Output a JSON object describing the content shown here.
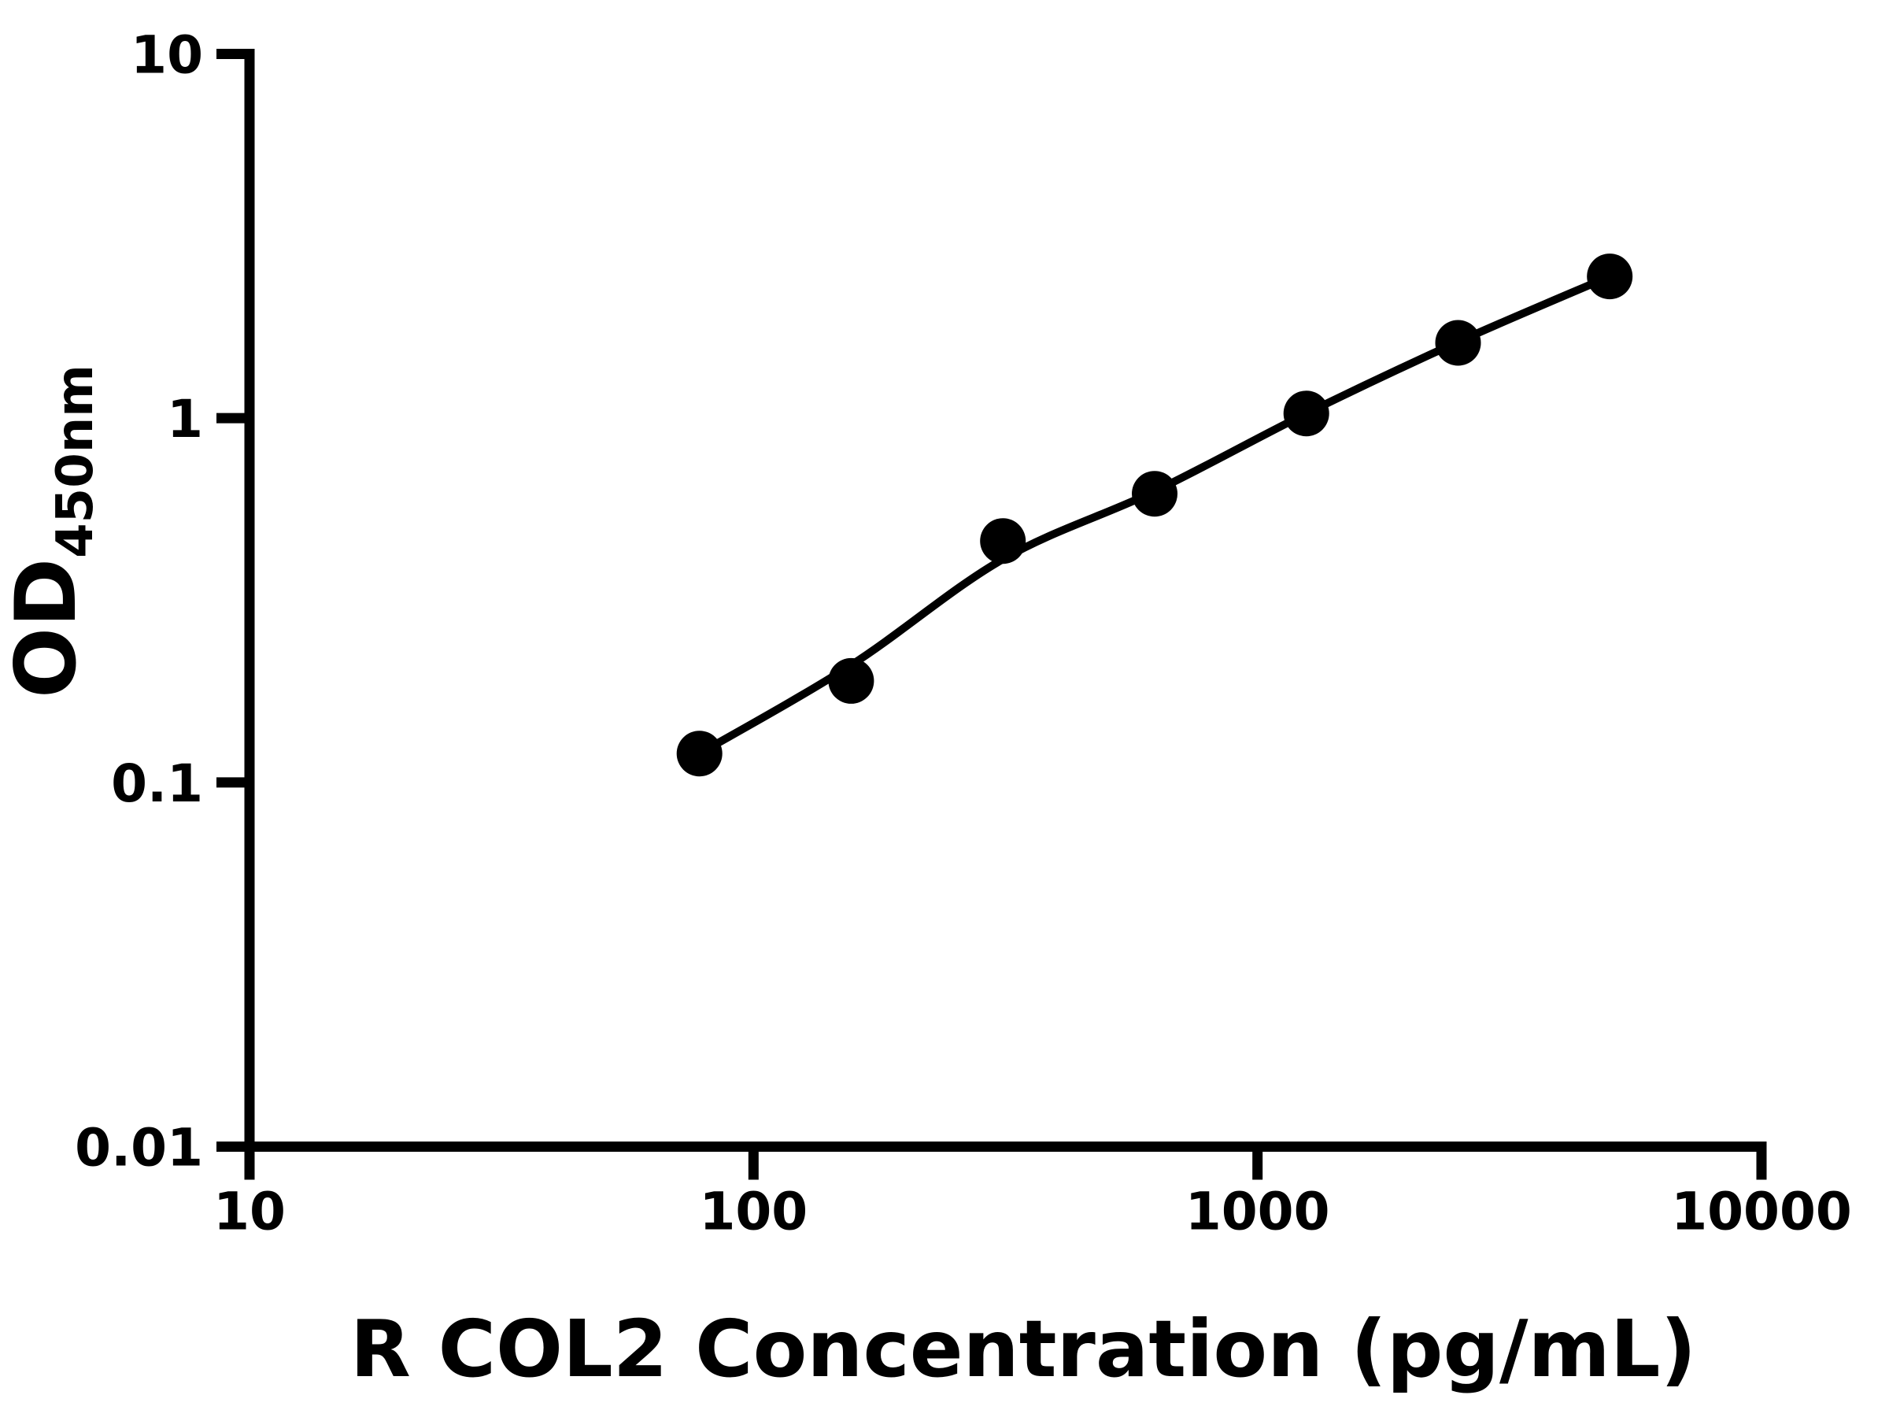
{
  "figure": {
    "background_color": "#ffffff",
    "foreground_color": "#000000"
  },
  "chart_data": {
    "type": "scatter",
    "title": "",
    "xlabel": "R COL2 Concentration (pg/mL)",
    "ylabel": "OD450nm",
    "ylabel_main": "OD",
    "ylabel_sub": "450nm",
    "x_scale": "log10",
    "y_scale": "log10",
    "xlim": [
      10,
      10000
    ],
    "ylim": [
      0.01,
      10
    ],
    "grid": false,
    "legend": false,
    "x_ticks": {
      "values": [
        10,
        100,
        1000,
        10000
      ],
      "labels": [
        "10",
        "100",
        "1000",
        "10000"
      ]
    },
    "y_ticks": {
      "values": [
        10,
        1,
        0.1,
        0.01
      ],
      "labels": [
        "10",
        "1",
        "0.1",
        "0.01"
      ]
    },
    "series": [
      {
        "name": "standard-curve-points",
        "marker": "filled-circle",
        "color": "#000000",
        "x": [
          78.125,
          156.25,
          312.5,
          625,
          1250,
          2500,
          5000
        ],
        "y": [
          0.12,
          0.19,
          0.46,
          0.62,
          1.03,
          1.61,
          2.45
        ]
      }
    ],
    "fit_curve": {
      "name": "four-parameter-logistic-fit",
      "color": "#000000",
      "x": [
        78.125,
        156.25,
        312.5,
        625,
        1250,
        2500,
        5000
      ],
      "y": [
        0.12,
        0.21,
        0.41,
        0.63,
        1.03,
        1.62,
        2.45
      ]
    },
    "marker_diameter_px": 58,
    "curve_stroke_px": 10,
    "axis_stroke_px": 13
  }
}
